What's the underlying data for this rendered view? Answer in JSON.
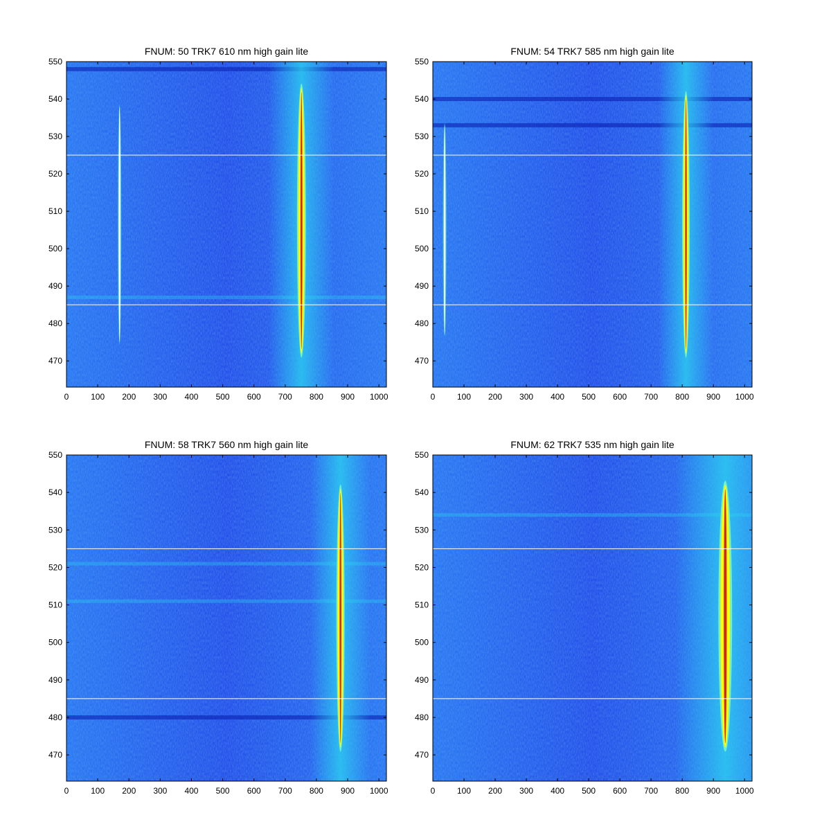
{
  "colors": {
    "background_low": "#1840e6",
    "background_mid": "#1f6df0",
    "glow": "#2bd5f0",
    "peak_yellow": "#ffff00",
    "peak_red": "#cc0000",
    "guide_line": "#ffffff"
  },
  "chart_data": [
    {
      "type": "heatmap",
      "title": "FNUM: 50 TRK7 610 nm high gain lite",
      "xlim": [
        0,
        1024
      ],
      "ylim": [
        463,
        550
      ],
      "xticks": [
        0,
        100,
        200,
        300,
        400,
        500,
        600,
        700,
        800,
        900,
        1000
      ],
      "yticks": [
        470,
        480,
        490,
        500,
        510,
        520,
        530,
        540,
        550
      ],
      "guide_lines_y": [
        525,
        485
      ],
      "features": [
        {
          "x": 170,
          "y_range": [
            475,
            538
          ],
          "width": 6,
          "intensity": "medium"
        },
        {
          "x": 752,
          "y_range": [
            472,
            543
          ],
          "width": 26,
          "intensity": "high"
        }
      ],
      "dark_bands_y": [
        548
      ],
      "bright_bands_y": [
        487
      ]
    },
    {
      "type": "heatmap",
      "title": "FNUM: 54 TRK7 585 nm high gain lite",
      "xlim": [
        0,
        1024
      ],
      "ylim": [
        463,
        550
      ],
      "xticks": [
        0,
        100,
        200,
        300,
        400,
        500,
        600,
        700,
        800,
        900,
        1000
      ],
      "yticks": [
        470,
        480,
        490,
        500,
        510,
        520,
        530,
        540,
        550
      ],
      "guide_lines_y": [
        525,
        485
      ],
      "features": [
        {
          "x": 38,
          "y_range": [
            477,
            533
          ],
          "width": 4,
          "intensity": "medium"
        },
        {
          "x": 812,
          "y_range": [
            472,
            541
          ],
          "width": 22,
          "intensity": "high"
        }
      ],
      "dark_bands_y": [
        540,
        533
      ],
      "bright_bands_y": []
    },
    {
      "type": "heatmap",
      "title": "FNUM: 58 TRK7 560 nm high gain lite",
      "xlim": [
        0,
        1024
      ],
      "ylim": [
        463,
        550
      ],
      "xticks": [
        0,
        100,
        200,
        300,
        400,
        500,
        600,
        700,
        800,
        900,
        1000
      ],
      "yticks": [
        470,
        480,
        490,
        500,
        510,
        520,
        530,
        540,
        550
      ],
      "guide_lines_y": [
        525,
        485
      ],
      "features": [
        {
          "x": 877,
          "y_range": [
            472,
            541
          ],
          "width": 24,
          "intensity": "high"
        }
      ],
      "dark_bands_y": [
        480
      ],
      "bright_bands_y": [
        521,
        511
      ]
    },
    {
      "type": "heatmap",
      "title": "FNUM: 62 TRK7 535 nm high gain lite",
      "xlim": [
        0,
        1024
      ],
      "ylim": [
        463,
        550
      ],
      "xticks": [
        0,
        100,
        200,
        300,
        400,
        500,
        600,
        700,
        800,
        900,
        1000
      ],
      "yticks": [
        470,
        480,
        490,
        500,
        510,
        520,
        530,
        540,
        550
      ],
      "guide_lines_y": [
        525,
        485
      ],
      "features": [
        {
          "x": 938,
          "y_range": [
            472,
            542
          ],
          "width": 40,
          "intensity": "high"
        }
      ],
      "dark_bands_y": [],
      "bright_bands_y": [
        534
      ]
    }
  ]
}
